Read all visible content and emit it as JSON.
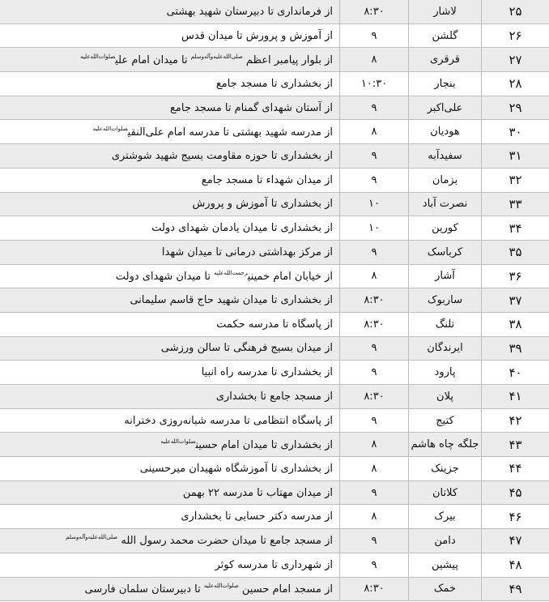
{
  "rows": [
    {
      "num": "۲۵",
      "city": "لاشار",
      "time": "۸:۳۰",
      "route": [
        {
          "t": "از فرمانداری تا دبیرستان شهید بهشتی"
        }
      ]
    },
    {
      "num": "۲۶",
      "city": "گلشن",
      "time": "۹",
      "route": [
        {
          "t": "از آموزش و پرورش تا میدان قدس"
        }
      ]
    },
    {
      "num": "۲۷",
      "city": "قرقری",
      "time": "۸",
      "route": [
        {
          "t": "از بلوار پیامبر اعظم "
        },
        {
          "t": "صلی‌الله‌علیه‌وآله‌وسلم",
          "sup": true
        },
        {
          "t": " تا میدان امام علی"
        },
        {
          "t": "صلوات‌الله‌علیه",
          "sup": true
        }
      ]
    },
    {
      "num": "۲۸",
      "city": "بنجار",
      "time": "۱۰:۳۰",
      "route": [
        {
          "t": "از بخشداری تا مسجد جامع"
        }
      ]
    },
    {
      "num": "۲۹",
      "city": "علی‌اکبر",
      "time": "۹",
      "route": [
        {
          "t": "از آستان شهدای گمنام تا مسجد جامع"
        }
      ]
    },
    {
      "num": "۳۰",
      "city": "هودیان",
      "time": "۸",
      "route": [
        {
          "t": "از مدرسه شهید بهشتی تا مدرسه امام علی‌النقی"
        },
        {
          "t": "صلوات‌الله‌علیه",
          "sup": true
        }
      ]
    },
    {
      "num": "۳۱",
      "city": "سفیدآبه",
      "time": "۹",
      "route": [
        {
          "t": "از بخشداری تا حوزه مقاومت بسیج شهید شوشتری"
        }
      ]
    },
    {
      "num": "۳۲",
      "city": "بزمان",
      "time": "۹",
      "route": [
        {
          "t": "از میدان شهداء تا مسجد جامع"
        }
      ]
    },
    {
      "num": "۳۳",
      "city": "نصرت آباد",
      "time": "۱۰",
      "route": [
        {
          "t": "از بخشداری تا آموزش و پرورش"
        }
      ]
    },
    {
      "num": "۳۴",
      "city": "کورین",
      "time": "۱۰",
      "route": [
        {
          "t": "از بخشداری تا میدان یادمان شهدای دولت"
        }
      ]
    },
    {
      "num": "۳۵",
      "city": "کرباسک",
      "time": "۹",
      "route": [
        {
          "t": "از مرکز بهداشتی درمانی تا میدان شهدا"
        }
      ]
    },
    {
      "num": "۳۶",
      "city": "آشار",
      "time": "۸",
      "route": [
        {
          "t": "از خیابان امام خمینی"
        },
        {
          "t": "رحمت‌الله‌علیه",
          "sup": true
        },
        {
          "t": " تا میدان شهدای دولت"
        }
      ]
    },
    {
      "num": "۳۷",
      "city": "ساربوک",
      "time": "۸:۳۰",
      "route": [
        {
          "t": "از بخشداری تا میدان شهید حاج قاسم سلیمانی"
        }
      ]
    },
    {
      "num": "۳۸",
      "city": "تلنگ",
      "time": "۸:۳۰",
      "route": [
        {
          "t": "از پاسگاه تا مدرسه حکمت"
        }
      ]
    },
    {
      "num": "۳۹",
      "city": "ایرندگان",
      "time": "۹",
      "route": [
        {
          "t": "از میدان بسیج فرهنگی تا سالن ورزشی"
        }
      ]
    },
    {
      "num": "۴۰",
      "city": "پارود",
      "time": "۹",
      "route": [
        {
          "t": "از بخشداری تا مدرسه راه انبیا"
        }
      ]
    },
    {
      "num": "۴۱",
      "city": "پلان",
      "time": "۸:۳۰",
      "route": [
        {
          "t": "از مسجد جامع تا بخشداری"
        }
      ]
    },
    {
      "num": "۴۲",
      "city": "کتیج",
      "time": "۹",
      "route": [
        {
          "t": "از پاسگاه انتظامی تا مدرسه شبانه‌روزی دخترانه"
        }
      ]
    },
    {
      "num": "۴۳",
      "city": "جلگه چاه هاشم",
      "time": "۸",
      "route": [
        {
          "t": "از بخشداری تا میدان امام حسین"
        },
        {
          "t": "صلوات‌الله‌علیه",
          "sup": true
        }
      ]
    },
    {
      "num": "۴۴",
      "city": "جزینک",
      "time": "۸",
      "route": [
        {
          "t": "از بخشداری تا آموزشگاه شهیدان میرحسینی"
        }
      ]
    },
    {
      "num": "۴۵",
      "city": "کلاتان",
      "time": "۹",
      "route": [
        {
          "t": "از میدان مهتاب تا مدرسه ۲۲ بهمن"
        }
      ]
    },
    {
      "num": "۴۶",
      "city": "بیرک",
      "time": "۸",
      "route": [
        {
          "t": "از مدرسه دکتر حسابی تا بخشداری"
        }
      ]
    },
    {
      "num": "۴۷",
      "city": "دامن",
      "time": "۹",
      "route": [
        {
          "t": "از مسجد جامع تا میدان حضرت محمد رسول الله "
        },
        {
          "t": "صلی‌الله‌علیه‌وآله‌وسلم",
          "sup": true
        }
      ]
    },
    {
      "num": "۴۸",
      "city": "پیشین",
      "time": "۹",
      "route": [
        {
          "t": "از شهرداری تا مدرسه کوثر"
        }
      ]
    },
    {
      "num": "۴۹",
      "city": "خمک",
      "time": "۸:۳۰",
      "route": [
        {
          "t": "از مسجد امام حسین "
        },
        {
          "t": "صلوات‌الله‌علیه",
          "sup": true
        },
        {
          "t": " تا دبیرستان سلمان فارسی"
        }
      ]
    }
  ],
  "colors": {
    "shaded_row": "#ebebeb",
    "border": "#bdbdbd"
  }
}
